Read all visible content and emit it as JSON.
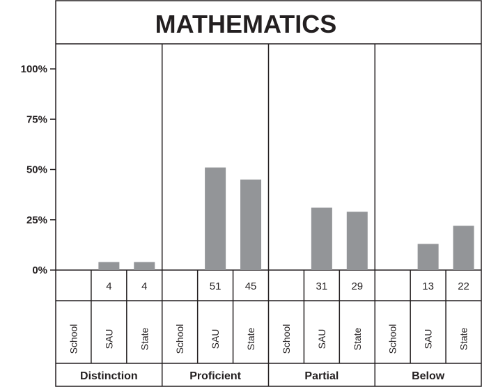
{
  "chart_data": {
    "type": "bar",
    "title": "MATHEMATICS",
    "ylim": [
      0,
      110
    ],
    "yticks": [
      {
        "value": 0,
        "label": "0%"
      },
      {
        "value": 25,
        "label": "25%"
      },
      {
        "value": 50,
        "label": "50%"
      },
      {
        "value": 75,
        "label": "75%"
      },
      {
        "value": 100,
        "label": "100%"
      }
    ],
    "categories": [
      "Distinction",
      "Proficient",
      "Partial",
      "Below"
    ],
    "subcategories": [
      "School",
      "SAU",
      "State"
    ],
    "values": [
      [
        null,
        4,
        4
      ],
      [
        null,
        51,
        45
      ],
      [
        null,
        31,
        29
      ],
      [
        null,
        13,
        22
      ]
    ],
    "bar_color": "#939598",
    "grid": false,
    "legend": "none"
  }
}
